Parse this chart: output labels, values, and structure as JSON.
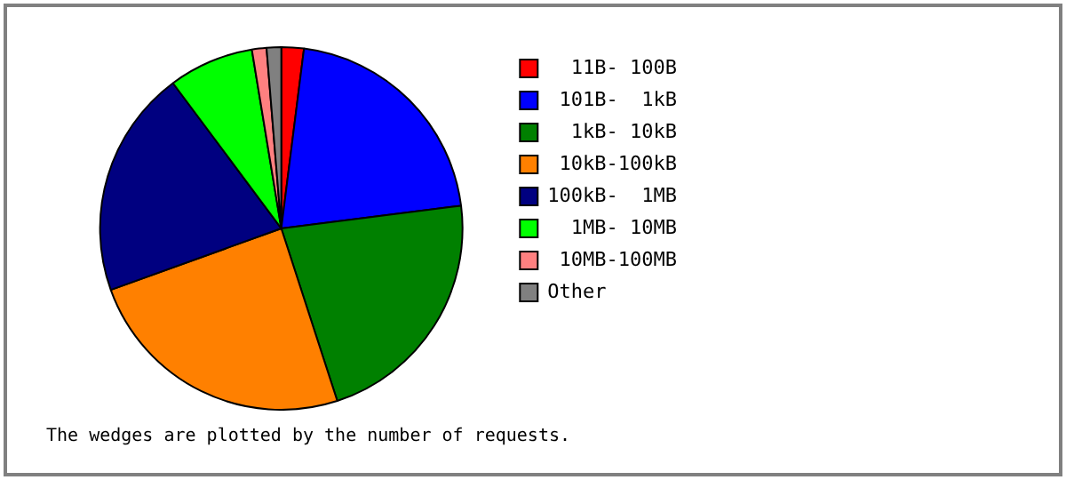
{
  "chart_data": {
    "type": "pie",
    "categories": [
      "  11B- 100B",
      " 101B-  1kB",
      "  1kB- 10kB",
      " 10kB-100kB",
      "100kB-  1MB",
      "  1MB- 10MB",
      " 10MB-100MB",
      "Other"
    ],
    "values": [
      2,
      21,
      22,
      24.5,
      20.3,
      7.6,
      1.3,
      1.3
    ],
    "colors": [
      "#ff0000",
      "#0000ff",
      "#008000",
      "#ff8000",
      "#000080",
      "#00ff00",
      "#ff8080",
      "#808080"
    ],
    "legend": "right",
    "annotations": [
      "The wedges are plotted by the number of requests."
    ]
  }
}
